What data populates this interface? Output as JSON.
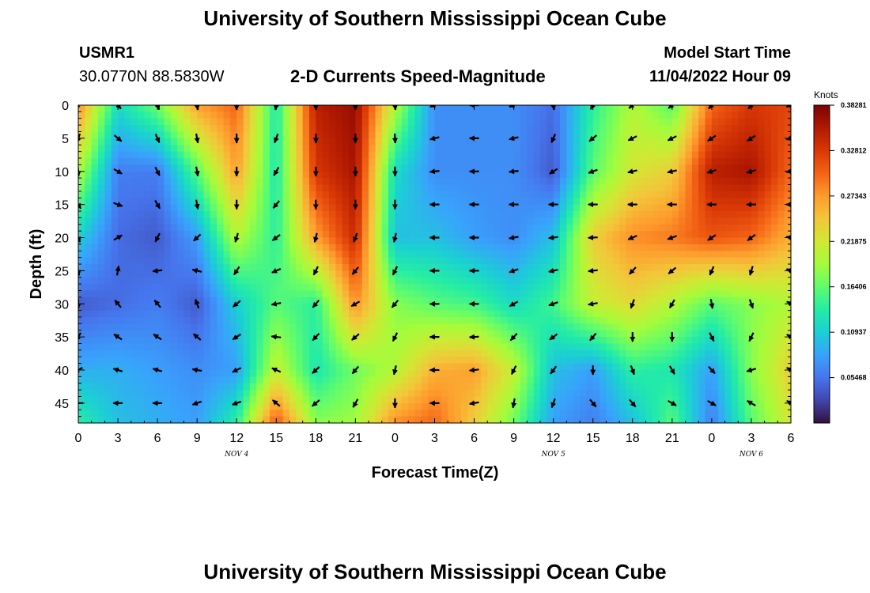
{
  "header": {
    "title": "University of Southern Mississippi Ocean Cube",
    "station": "USMR1",
    "coordinates": "30.0770N  88.5830W",
    "subtitle": "2-D Currents Speed-Magnitude",
    "model_start_label": "Model Start Time",
    "model_start_value": "11/04/2022 Hour 09"
  },
  "footer": {
    "title": "University of Southern Mississippi Ocean Cube"
  },
  "chart_data": {
    "type": "heatmap",
    "title": "2-D Currents Speed-Magnitude",
    "xlabel": "Forecast Time(Z)",
    "ylabel": "Depth (ft)",
    "x_ticks": [
      "0",
      "3",
      "6",
      "9",
      "12",
      "15",
      "18",
      "21",
      "0",
      "3",
      "6",
      "9",
      "12",
      "15",
      "18",
      "21",
      "0",
      "3",
      "6"
    ],
    "date_labels": [
      {
        "text": "NOV 4",
        "at_tick": 4
      },
      {
        "text": "NOV 5",
        "at_tick": 12
      },
      {
        "text": "NOV 6",
        "at_tick": 17
      }
    ],
    "y_ticks": [
      0,
      5,
      10,
      15,
      20,
      25,
      30,
      35,
      40,
      45
    ],
    "ylim": [
      0,
      48
    ],
    "y_inverted": true,
    "colorbar": {
      "label": "Knots",
      "ticks": [
        "0.38281",
        "0.32812",
        "0.27343",
        "0.21875",
        "0.16406",
        "0.10937",
        "0.05468"
      ],
      "range": [
        0,
        0.38281
      ],
      "colors": [
        "#30123b",
        "#4145ab",
        "#4675ed",
        "#39a2fc",
        "#1bcfd4",
        "#24eca6",
        "#61fc6c",
        "#a4fc3b",
        "#d1e834",
        "#f3c63a",
        "#fe9b2d",
        "#f36315",
        "#d93806",
        "#b11901",
        "#7a0403"
      ]
    },
    "speed_grid": {
      "depths_ft": [
        0,
        10,
        20,
        30,
        40,
        48
      ],
      "hours": [
        0,
        3,
        6,
        9,
        12,
        15,
        18,
        21,
        24,
        27,
        30,
        33,
        36,
        39,
        42,
        45,
        48,
        51,
        54
      ],
      "values": [
        [
          0.28,
          0.12,
          0.17,
          0.27,
          0.3,
          0.13,
          0.35,
          0.37,
          0.2,
          0.07,
          0.07,
          0.07,
          0.05,
          0.14,
          0.2,
          0.16,
          0.3,
          0.33,
          0.32
        ],
        [
          0.2,
          0.06,
          0.06,
          0.16,
          0.27,
          0.13,
          0.33,
          0.36,
          0.12,
          0.07,
          0.07,
          0.07,
          0.04,
          0.16,
          0.22,
          0.24,
          0.35,
          0.36,
          0.3
        ],
        [
          0.11,
          0.05,
          0.04,
          0.08,
          0.2,
          0.14,
          0.27,
          0.34,
          0.1,
          0.1,
          0.08,
          0.07,
          0.1,
          0.24,
          0.28,
          0.29,
          0.31,
          0.3,
          0.26
        ],
        [
          0.04,
          0.05,
          0.06,
          0.04,
          0.11,
          0.16,
          0.14,
          0.28,
          0.18,
          0.16,
          0.15,
          0.12,
          0.15,
          0.21,
          0.23,
          0.2,
          0.16,
          0.18,
          0.2
        ],
        [
          0.09,
          0.09,
          0.08,
          0.07,
          0.08,
          0.21,
          0.13,
          0.17,
          0.2,
          0.26,
          0.27,
          0.21,
          0.1,
          0.08,
          0.14,
          0.13,
          0.08,
          0.18,
          0.24
        ],
        [
          0.14,
          0.1,
          0.09,
          0.08,
          0.14,
          0.31,
          0.18,
          0.19,
          0.28,
          0.3,
          0.24,
          0.17,
          0.08,
          0.06,
          0.1,
          0.16,
          0.06,
          0.16,
          0.22
        ]
      ]
    },
    "vector_grid": {
      "depths_ft": [
        0,
        15,
        30,
        45
      ],
      "hours": [
        0,
        3,
        6,
        9,
        12,
        15,
        18,
        21,
        24,
        27,
        30,
        33,
        36,
        39,
        42,
        45,
        48,
        51,
        54
      ],
      "directions_deg": [
        [
          225,
          310,
          290,
          280,
          270,
          260,
          270,
          270,
          275,
          200,
          180,
          200,
          280,
          240,
          220,
          220,
          230,
          230,
          200
        ],
        [
          300,
          340,
          300,
          280,
          270,
          230,
          270,
          270,
          270,
          180,
          180,
          180,
          180,
          180,
          180,
          180,
          180,
          180,
          180
        ],
        [
          270,
          130,
          130,
          110,
          220,
          190,
          230,
          210,
          230,
          180,
          180,
          210,
          200,
          190,
          250,
          240,
          280,
          290,
          150
        ],
        [
          180,
          180,
          180,
          200,
          200,
          140,
          220,
          240,
          270,
          180,
          190,
          260,
          250,
          310,
          310,
          330,
          330,
          150,
          150
        ]
      ]
    }
  }
}
